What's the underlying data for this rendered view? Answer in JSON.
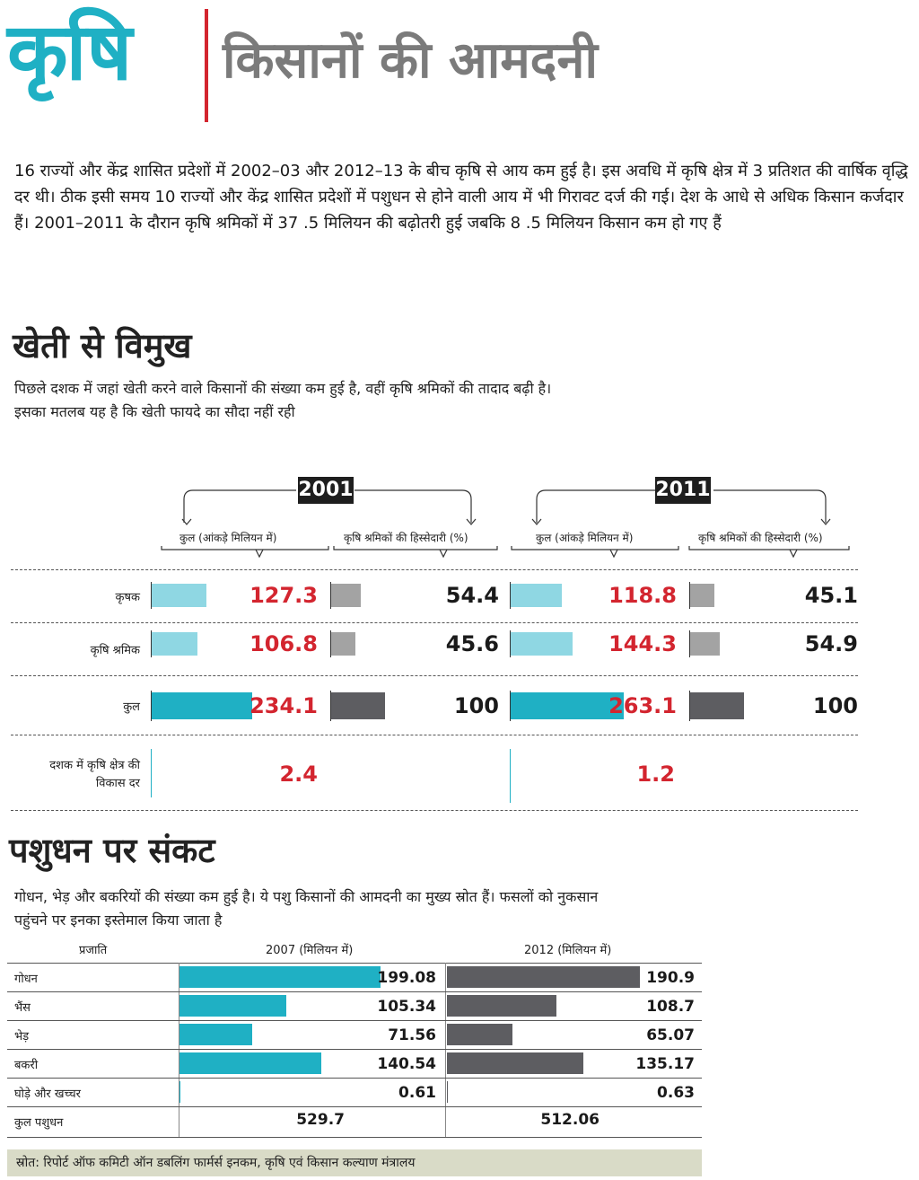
{
  "header": {
    "title": "कृषि",
    "subtitle": "किसानों की आमदनी"
  },
  "intro": "16 राज्यों और केंद्र शासित प्रदेशों में 2002–03 और 2012–13 के बीच कृषि से आय कम हुई है। इस अवधि में कृषि क्षेत्र में 3 प्रतिशत की वार्षिक वृद्धि दर थी। ठीक इसी समय 10 राज्यों और केंद्र शासित प्रदेशों में पशुधन से होने वाली आय में भी गिरावट दर्ज की गई। देश के आधे से अधिक किसान कर्जदार हैं। 2001–2011 के दौरान कृषि श्रमिकों में 37 .5 मिलियन की बढ़ोतरी हुई जबकि 8 .5 मिलियन किसान कम हो गए हैं",
  "section1": {
    "title": "खेती से विमुख",
    "desc_line1": "पिछले दशक में जहां खेती करने वाले किसानों की संख्या कम हुई है, वहीं कृषि श्रमिकों की तादाद बढ़ी है।",
    "desc_line2": "इसका मतलब यह है कि खेती फायदे का सौदा नहीं रही"
  },
  "section2": {
    "title": "पशुधन पर संकट",
    "desc_line1": "गोधन, भेड़ और बकरियों की संख्या कम हुई है। ये पशु किसानों की आमदनी का मुख्य स्रोत हैं। फसलों को नुकसान",
    "desc_line2": "पहुंचने पर इनका इस्तेमाल किया जाता है"
  },
  "source": "स्रोत: रिपोर्ट ऑफ कमिटी ऑन डबलिंग फार्मर्स इनकम, कृषि एवं किसान कल्याण मंत्रालय",
  "colors": {
    "teal": "#1fb0c4",
    "light_teal": "#8fd7e3",
    "gray": "#a3a3a3",
    "dark_gray": "#5d5d61",
    "red": "#d3252f"
  },
  "chart_data": [
    {
      "type": "bar",
      "years": [
        "2001",
        "2011"
      ],
      "column_headers": {
        "total": "कुल (आंकड़े मिलियन में)",
        "share": "कृषि श्रमिकों की हिस्सेदारी (%)"
      },
      "rows": [
        {
          "label": "कृषक",
          "total": [
            "127.3",
            "118.8"
          ],
          "share": [
            "54.4",
            "45.1"
          ]
        },
        {
          "label": "कृषि श्रमिक",
          "total": [
            "106.8",
            "144.3"
          ],
          "share": [
            "45.6",
            "54.9"
          ]
        },
        {
          "label": "कुल",
          "total": [
            "234.1",
            "263.1"
          ],
          "share": [
            "100",
            "100"
          ]
        }
      ],
      "growth": {
        "label_line1": "दशक में कृषि क्षेत्र की",
        "label_line2": "विकास दर",
        "values": [
          "2.4",
          "1.2"
        ]
      }
    },
    {
      "type": "bar",
      "headers": {
        "category": "प्रजाति",
        "y2007": "2007 (मिलियन में)",
        "y2012": "2012  (मिलियन में)"
      },
      "rows": [
        {
          "label": "गोधन",
          "v2007": "199.08",
          "v2012": "190.9"
        },
        {
          "label": "भैंस",
          "v2007": "105.34",
          "v2012": "108.7"
        },
        {
          "label": "भेड़",
          "v2007": "71.56",
          "v2012": "65.07"
        },
        {
          "label": "बकरी",
          "v2007": "140.54",
          "v2012": "135.17"
        },
        {
          "label": "घोड़े और खच्चर",
          "v2007": "0.61",
          "v2012": "0.63"
        }
      ],
      "total": {
        "label": "कुल पशुधन",
        "v2007": "529.7",
        "v2012": "512.06"
      }
    }
  ]
}
